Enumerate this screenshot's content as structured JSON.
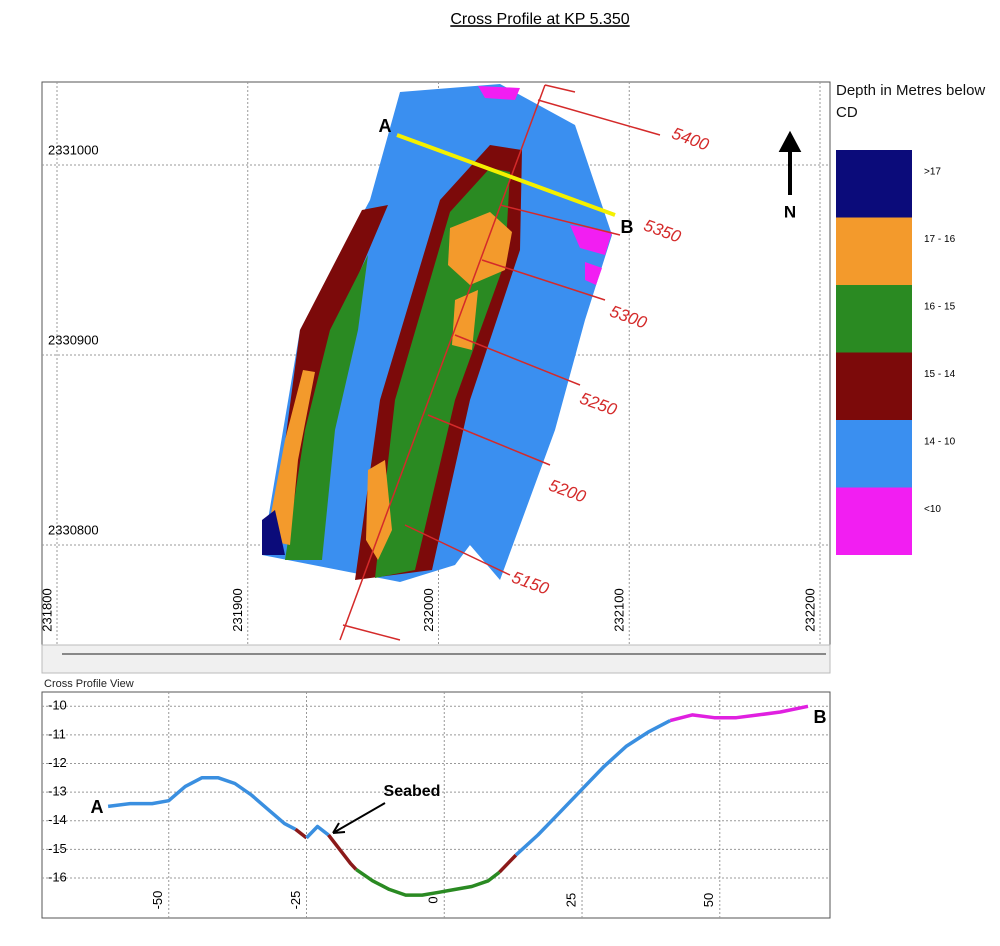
{
  "title": "Cross Profile at KP 5.350",
  "map": {
    "xticks": [
      231800,
      231900,
      232000,
      232100,
      232200
    ],
    "yticks": [
      2331000,
      2330900,
      2330800
    ],
    "kp_labels": [
      "5400",
      "5350",
      "5300",
      "5250",
      "5200",
      "5150"
    ],
    "point_a": "A",
    "point_b": "B",
    "north": "N"
  },
  "legend": {
    "title": "Depth in Metres below CD",
    "items": [
      {
        "label": ">17",
        "color": "#0b0b7a"
      },
      {
        "label": "17 - 16",
        "color": "#f39a2c"
      },
      {
        "label": "16 - 15",
        "color": "#2a8a22"
      },
      {
        "label": "15 - 14",
        "color": "#7c0a0a"
      },
      {
        "label": "14 - 10",
        "color": "#3a8ff0"
      },
      {
        "label": "<10",
        "color": "#f21ef2"
      }
    ]
  },
  "profile": {
    "title": "Cross Profile View",
    "xlim": [
      -73,
      70
    ],
    "ylim": [
      -17.4,
      -9.5
    ],
    "xticks": [
      -50,
      -25,
      0,
      25,
      50
    ],
    "yticks": [
      -10,
      -11,
      -12,
      -13,
      -14,
      -15,
      -16
    ],
    "point_a": "A",
    "point_b": "B",
    "annotation": "Seabed",
    "series": [
      {
        "color": "#3a8fe0",
        "x": [
          -61,
          -57,
          -53,
          -50,
          -47,
          -44,
          -41,
          -38,
          -35,
          -32,
          -29,
          -27
        ],
        "values": [
          -13.5,
          -13.4,
          -13.4,
          -13.3,
          -12.8,
          -12.5,
          -12.5,
          -12.7,
          -13.1,
          -13.6,
          -14.1,
          -14.3
        ]
      },
      {
        "color": "#8b1a1a",
        "x": [
          -27,
          -25
        ],
        "values": [
          -14.3,
          -14.6
        ]
      },
      {
        "color": "#3a8fe0",
        "x": [
          -25,
          -23,
          -21
        ],
        "values": [
          -14.6,
          -14.2,
          -14.5
        ]
      },
      {
        "color": "#8b1a1a",
        "x": [
          -21,
          -19,
          -17,
          -16
        ],
        "values": [
          -14.5,
          -15.0,
          -15.5,
          -15.7
        ]
      },
      {
        "color": "#2a8a22",
        "x": [
          -16,
          -13,
          -10,
          -7,
          -4,
          -1,
          2,
          5,
          8,
          10
        ],
        "values": [
          -15.7,
          -16.1,
          -16.4,
          -16.6,
          -16.6,
          -16.5,
          -16.4,
          -16.3,
          -16.1,
          -15.8
        ]
      },
      {
        "color": "#8b1a1a",
        "x": [
          10,
          13
        ],
        "values": [
          -15.8,
          -15.2
        ]
      },
      {
        "color": "#3a8fe0",
        "x": [
          13,
          17,
          21,
          25,
          29,
          33,
          37,
          41
        ],
        "values": [
          -15.2,
          -14.5,
          -13.7,
          -12.9,
          -12.1,
          -11.4,
          -10.9,
          -10.5
        ]
      },
      {
        "color": "#e020e0",
        "x": [
          41,
          45,
          49,
          53,
          57,
          61,
          66
        ],
        "values": [
          -10.5,
          -10.3,
          -10.4,
          -10.4,
          -10.3,
          -10.2,
          -10.0
        ]
      }
    ]
  }
}
